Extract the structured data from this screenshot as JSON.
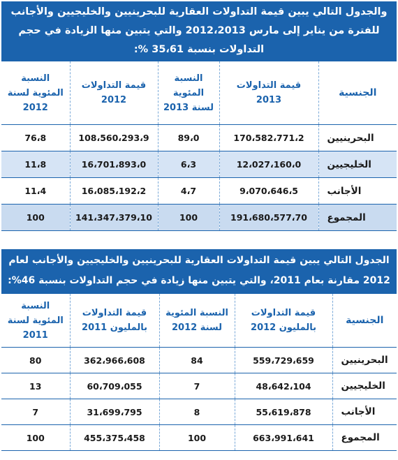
{
  "table1": {
    "title": "والجدول التالي يبين قيمة التداولات العقارية للبحرينيين والخليجيين والأجانب للفترة من يناير إلى مارس 2012،2013 والتي يتبين منها الزيادة في حجم التداولات بنسبة 35،61 %:",
    "headers": [
      "الجنسية",
      "قيمة التداولات 2013",
      "النسبة المئوية لسنة 2013",
      "قيمة التداولات 2012",
      "النسبة المئوية لسنة 2012"
    ],
    "rows": [
      [
        "البحرينيين",
        "170،582،771،2",
        "89،0",
        "108،560،293،9",
        "76،8"
      ],
      [
        "الخليجيين",
        "12،027،160،0",
        "6،3",
        "16،701،893،0",
        "11،8"
      ],
      [
        "الأجانب",
        "9،070،646،5",
        "4،7",
        "16،085،192،2",
        "11،4"
      ],
      [
        "المجموع",
        "191،680،577،70",
        "100",
        "141،347،379،10",
        "100"
      ]
    ]
  },
  "table2": {
    "title": "الجدول التالي يبين قيمة التداولات العقارية للبحرينيين والخليجيين والأجانب لعام 2012 مقارنة بعام 2011، والتي يتبين منها زيادة في حجم التداولات بنسبة 46%:",
    "headers": [
      "الجنسية",
      "قيمة التداولات بالمليون 2012",
      "النسبة المئوية لسنة 2012",
      "قيمة التداولات بالمليون 2011",
      "النسبة المئوية لسنة 2011"
    ],
    "rows": [
      [
        "البحرينيين",
        "559،729،659",
        "84",
        "362،966،608",
        "80"
      ],
      [
        "الخليجيين",
        "48،642،104",
        "7",
        "60،709،055",
        "13"
      ],
      [
        "الأجانب",
        "55،619،878",
        "8",
        "31،699،795",
        "7"
      ],
      [
        "المجموع",
        "663،991،641",
        "100",
        "455،375،458",
        "100"
      ]
    ]
  },
  "colors": {
    "header_blue": "#1b63ad",
    "row_band": "#d6e4f5",
    "white": "#ffffff"
  }
}
